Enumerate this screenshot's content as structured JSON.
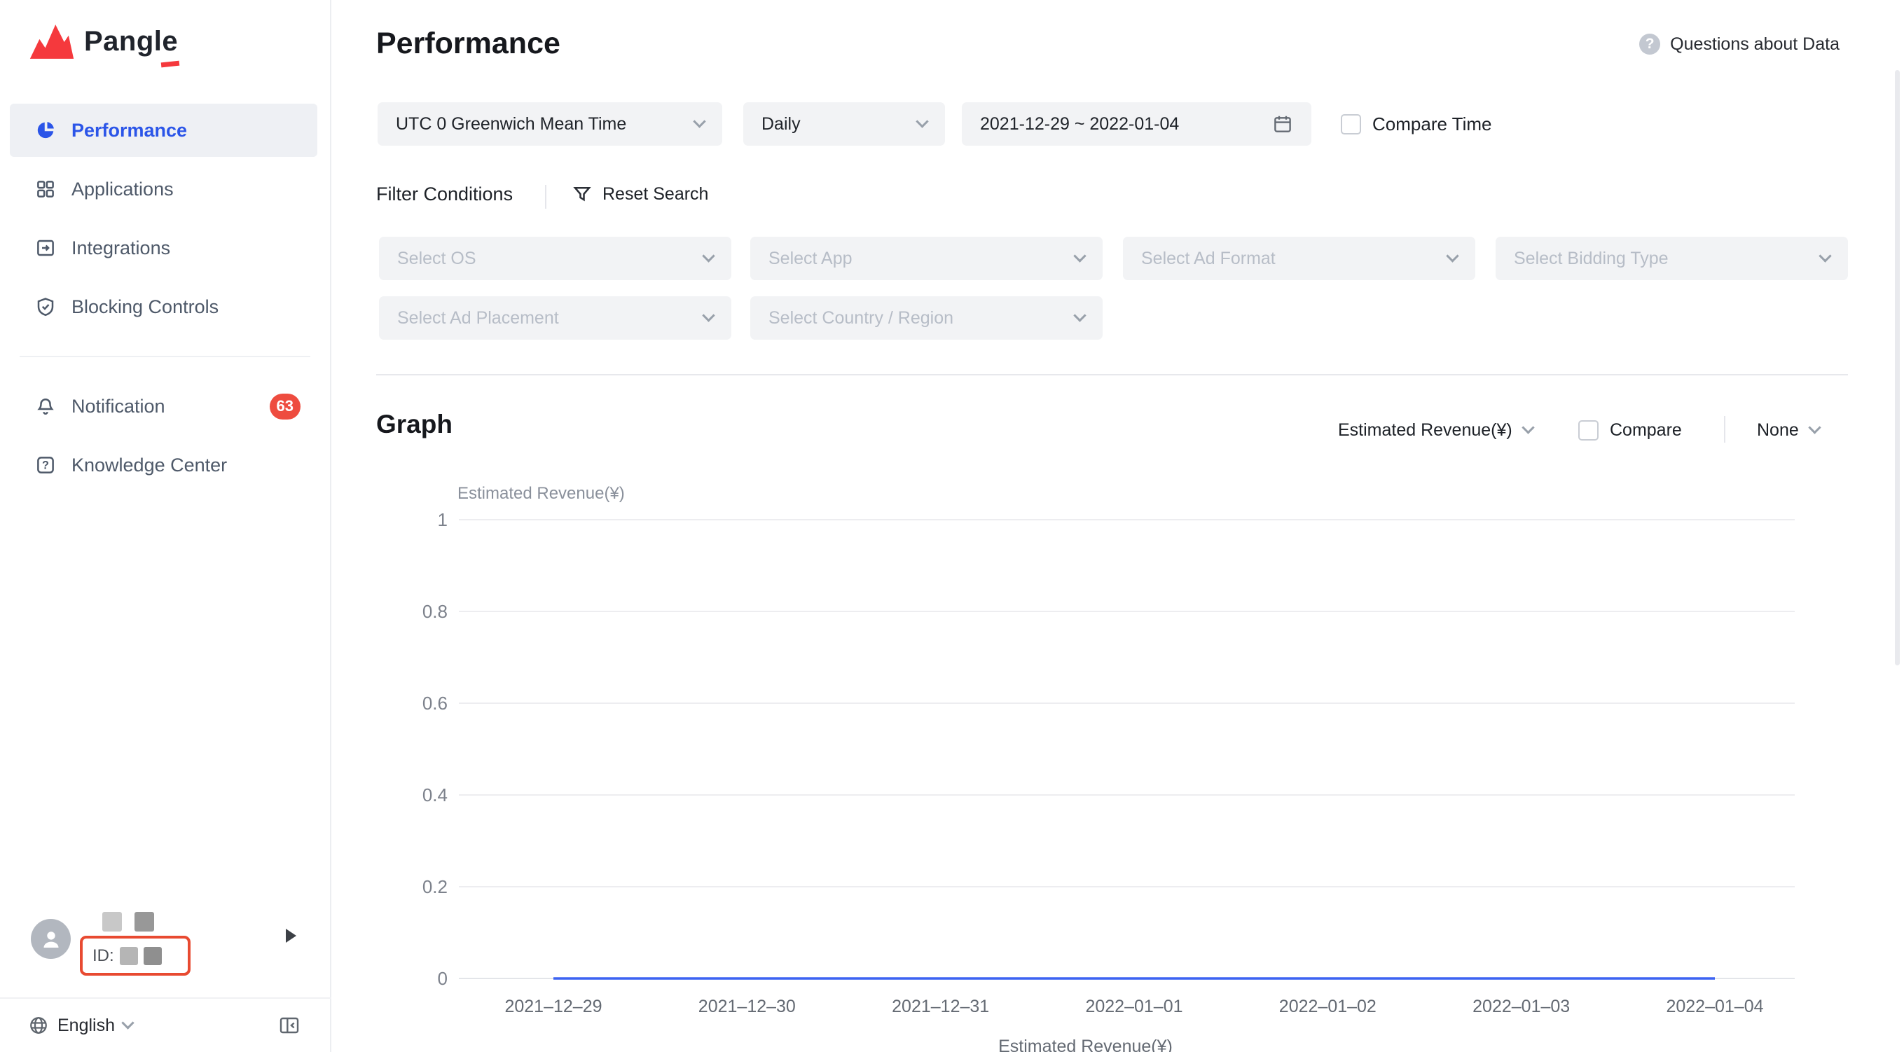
{
  "brand": {
    "name": "Pangle"
  },
  "icons": {
    "question_mark": "?"
  },
  "sidebar": {
    "items": [
      {
        "label": "Performance",
        "active": true
      },
      {
        "label": "Applications"
      },
      {
        "label": "Integrations"
      },
      {
        "label": "Blocking Controls"
      },
      {
        "label": "Notification",
        "badge": "63"
      },
      {
        "label": "Knowledge Center"
      }
    ],
    "user": {
      "id_label": "ID:"
    },
    "language_label": "English"
  },
  "header": {
    "title": "Performance",
    "help_label": "Questions about Data"
  },
  "filters": {
    "timezone": "UTC 0 Greenwich Mean Time",
    "granularity": "Daily",
    "date_range": "2021-12-29 ~ 2022-01-04",
    "compare_time_label": "Compare Time",
    "conditions_label": "Filter Conditions",
    "reset_label": "Reset Search",
    "select_os": "Select OS",
    "select_app": "Select App",
    "select_ad_format": "Select Ad Format",
    "select_bidding_type": "Select Bidding Type",
    "select_ad_placement": "Select Ad Placement",
    "select_country": "Select Country / Region"
  },
  "graph": {
    "section_title": "Graph",
    "metric": "Estimated Revenue(¥)",
    "compare_label": "Compare",
    "dimension": "None"
  },
  "chart_data": {
    "type": "line",
    "title": "",
    "xlabel": "",
    "ylabel": "Estimated Revenue(¥)",
    "x": [
      "2021–12–29",
      "2021–12–30",
      "2021–12–31",
      "2022–01–01",
      "2022–01–02",
      "2022–01–03",
      "2022–01–04"
    ],
    "series": [
      {
        "name": "Estimated Revenue(¥)",
        "values": [
          0,
          0,
          0,
          0,
          0,
          0,
          0
        ],
        "color": "#3d63f2"
      }
    ],
    "ylim": [
      0,
      1
    ],
    "yticks": [
      0,
      0.2,
      0.4,
      0.6,
      0.8,
      1
    ],
    "grid": true,
    "legend": "Estimated Revenue(¥)",
    "legend_position": "bottom"
  },
  "colors": {
    "accent": "#2b55e8",
    "line": "#3d63f2",
    "badge": "#ee4c3f",
    "logo_red": "#f5393d",
    "highlight_box": "#e84a31",
    "control_bg": "#f2f3f5"
  }
}
